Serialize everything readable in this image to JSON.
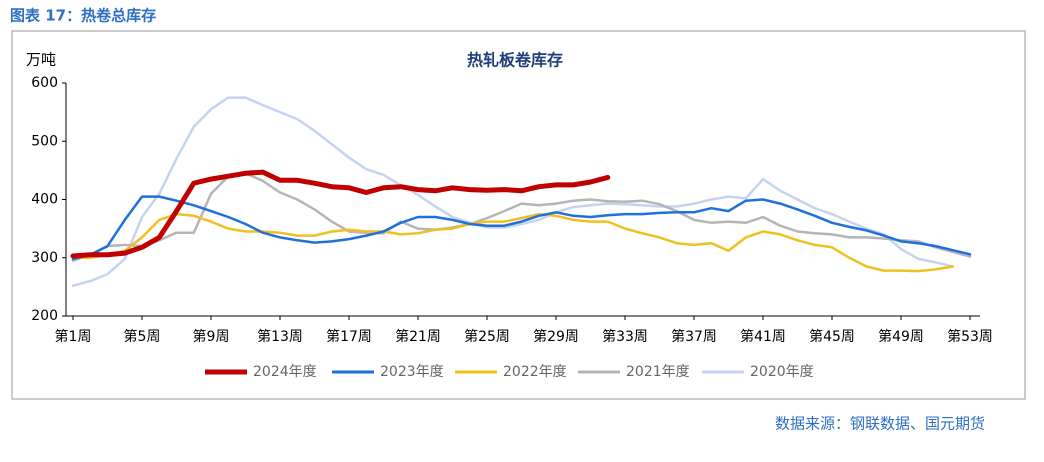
{
  "caption": "图表 17：热卷总库存",
  "source": "数据来源：钢联数据、国元期货",
  "chart_data": {
    "type": "line",
    "title": "热轧板卷库存",
    "ylabel": "万吨",
    "categories": [
      "第1周",
      null,
      null,
      null,
      "第5周",
      null,
      null,
      null,
      "第9周",
      null,
      null,
      null,
      "第13周",
      null,
      null,
      null,
      "第17周",
      null,
      null,
      null,
      "第21周",
      null,
      null,
      null,
      "第25周",
      null,
      null,
      null,
      "第29周",
      null,
      null,
      null,
      "第33周",
      null,
      null,
      null,
      "第37周",
      null,
      null,
      null,
      "第41周",
      null,
      null,
      null,
      "第45周",
      null,
      null,
      null,
      "第49周",
      null,
      null,
      null,
      "第53周"
    ],
    "ylim": [
      200,
      600
    ],
    "yticks": [
      200,
      300,
      400,
      500,
      600
    ],
    "grid": false,
    "legend": "bottom",
    "series": [
      {
        "name": "2024年度",
        "color": "#c00000",
        "values": [
          303,
          305,
          305,
          308,
          318,
          335,
          380,
          428,
          435,
          440,
          445,
          447,
          433,
          433,
          428,
          422,
          420,
          412,
          420,
          422,
          417,
          415,
          420,
          417,
          416,
          417,
          415,
          422,
          425,
          425,
          430,
          438,
          null,
          null,
          null,
          null,
          null,
          null,
          null,
          null,
          null,
          null,
          null,
          null,
          null,
          null,
          null,
          null,
          null,
          null,
          null,
          null,
          null
        ]
      },
      {
        "name": "2023年度",
        "color": "#1f6fde",
        "values": [
          298,
          305,
          320,
          365,
          405,
          405,
          398,
          390,
          380,
          370,
          358,
          343,
          335,
          330,
          326,
          328,
          332,
          338,
          345,
          360,
          370,
          370,
          365,
          358,
          355,
          355,
          362,
          372,
          378,
          372,
          370,
          373,
          375,
          375,
          377,
          378,
          378,
          385,
          380,
          398,
          400,
          393,
          383,
          372,
          360,
          353,
          347,
          338,
          328,
          325,
          320,
          313,
          306
        ]
      },
      {
        "name": "2022年度",
        "color": "#f0c020",
        "values": [
          300,
          300,
          305,
          312,
          335,
          365,
          375,
          372,
          362,
          350,
          345,
          345,
          343,
          338,
          338,
          345,
          348,
          345,
          345,
          340,
          342,
          348,
          350,
          358,
          362,
          362,
          368,
          375,
          372,
          365,
          362,
          362,
          350,
          342,
          335,
          325,
          322,
          325,
          312,
          335,
          345,
          340,
          330,
          322,
          318,
          300,
          285,
          278,
          278,
          277,
          280,
          285,
          null
        ]
      },
      {
        "name": "2021年度",
        "color": "#b5b5b5",
        "values": [
          295,
          305,
          320,
          322,
          320,
          330,
          343,
          343,
          410,
          440,
          445,
          432,
          412,
          400,
          383,
          362,
          345,
          343,
          342,
          362,
          350,
          348,
          352,
          358,
          368,
          380,
          393,
          390,
          393,
          398,
          400,
          397,
          396,
          398,
          392,
          380,
          365,
          360,
          362,
          360,
          370,
          355,
          345,
          342,
          340,
          335,
          335,
          333,
          330,
          328,
          318,
          310,
          302
        ]
      },
      {
        "name": "2020年度",
        "color": "#c5d3f0",
        "values": [
          252,
          260,
          272,
          298,
          370,
          410,
          470,
          525,
          555,
          575,
          575,
          562,
          550,
          538,
          518,
          495,
          472,
          452,
          442,
          425,
          408,
          388,
          370,
          360,
          352,
          352,
          358,
          365,
          378,
          387,
          390,
          393,
          392,
          390,
          388,
          388,
          393,
          400,
          405,
          402,
          435,
          415,
          400,
          385,
          375,
          362,
          350,
          340,
          315,
          298,
          292,
          285,
          null
        ]
      }
    ]
  }
}
